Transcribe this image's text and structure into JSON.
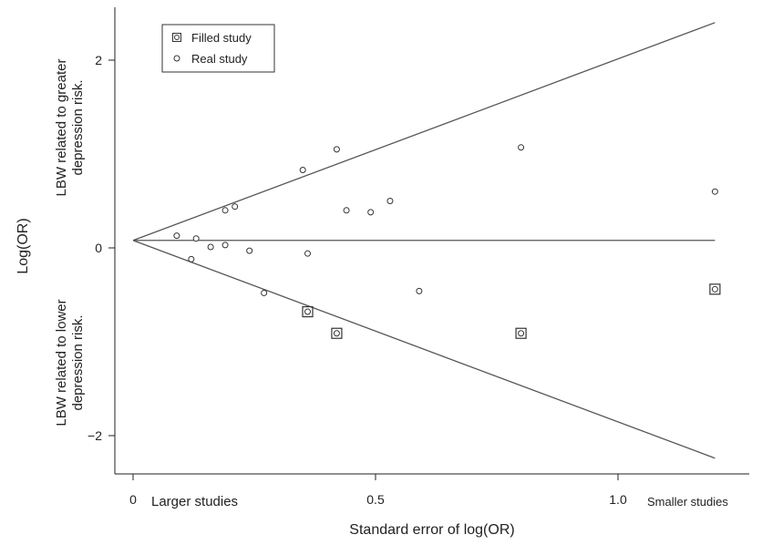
{
  "chart_data": {
    "type": "scatter",
    "xlabel": "Standard error of log(OR)",
    "ylabel": "Log(OR)",
    "xlim": [
      -0.04,
      1.28
    ],
    "ylim": [
      -2.5,
      2.6
    ],
    "x_ticks": [
      {
        "value": 0,
        "label": "0"
      },
      {
        "value": 0.5,
        "label": "0.5"
      },
      {
        "value": 1.0,
        "label": "1.0"
      }
    ],
    "y_ticks": [
      {
        "value": 2,
        "label": "2"
      },
      {
        "value": 0,
        "label": "0"
      },
      {
        "value": -2,
        "label": "−2"
      }
    ],
    "x_annotations": {
      "larger": "Larger studies",
      "smaller": "Smaller studies"
    },
    "y_annotations": {
      "upper": [
        "LBW related to greater",
        "depression risk."
      ],
      "lower": [
        "LBW related to lower",
        "depression risk."
      ]
    },
    "legend": {
      "position": "top-left",
      "entries": [
        {
          "label": "Filled study",
          "marker": "square-circle"
        },
        {
          "label": "Real study",
          "marker": "circle"
        }
      ]
    },
    "pooled_estimate": 0.08,
    "funnel": {
      "apex_x": 0.0,
      "end_x": 1.2,
      "upper_end_y": 2.4,
      "lower_end_y": -2.24
    },
    "series": [
      {
        "name": "Real study",
        "marker": "circle",
        "points": [
          {
            "x": 0.09,
            "y": 0.13
          },
          {
            "x": 0.12,
            "y": -0.12
          },
          {
            "x": 0.13,
            "y": 0.1
          },
          {
            "x": 0.16,
            "y": 0.01
          },
          {
            "x": 0.19,
            "y": 0.03
          },
          {
            "x": 0.19,
            "y": 0.4
          },
          {
            "x": 0.21,
            "y": 0.44
          },
          {
            "x": 0.24,
            "y": -0.03
          },
          {
            "x": 0.27,
            "y": -0.48
          },
          {
            "x": 0.35,
            "y": 0.83
          },
          {
            "x": 0.36,
            "y": -0.06
          },
          {
            "x": 0.42,
            "y": 1.05
          },
          {
            "x": 0.44,
            "y": 0.4
          },
          {
            "x": 0.49,
            "y": 0.38
          },
          {
            "x": 0.53,
            "y": 0.5
          },
          {
            "x": 0.59,
            "y": -0.46
          },
          {
            "x": 0.8,
            "y": 1.07
          },
          {
            "x": 1.2,
            "y": 0.6
          }
        ]
      },
      {
        "name": "Filled study",
        "marker": "square-circle",
        "points": [
          {
            "x": 0.36,
            "y": -0.68
          },
          {
            "x": 0.42,
            "y": -0.91
          },
          {
            "x": 0.8,
            "y": -0.91
          },
          {
            "x": 1.2,
            "y": -0.44
          }
        ]
      }
    ]
  }
}
